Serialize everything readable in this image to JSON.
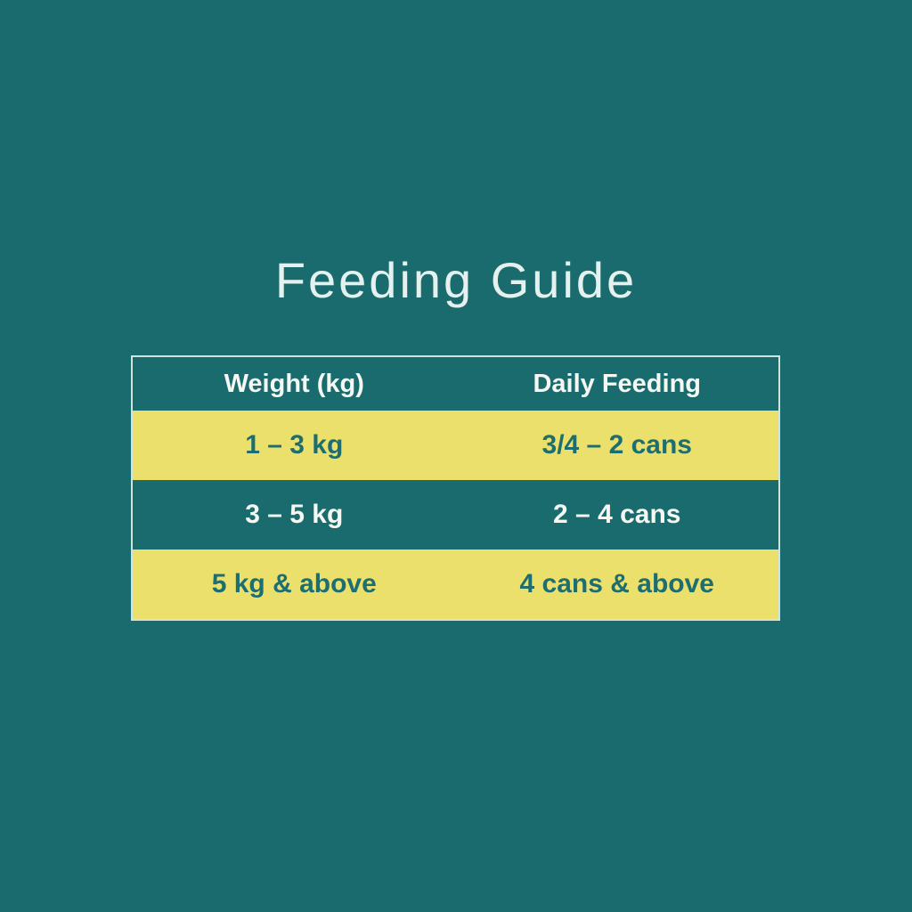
{
  "page": {
    "title": "Feeding Guide"
  },
  "colors": {
    "background_teal": "#1A6B6E",
    "row_yellow": "#ECE06D",
    "text_teal": "#1D6E71",
    "text_light": "#F4F7F2",
    "table_border": "#CFE3E1"
  },
  "table": {
    "columns": [
      {
        "label": "Weight (kg)"
      },
      {
        "label": "Daily Feeding"
      }
    ],
    "rows": [
      {
        "weight": "1 – 3 kg",
        "feeding": "3/4 – 2 cans"
      },
      {
        "weight": "3 – 5 kg",
        "feeding": "2 – 4 cans"
      },
      {
        "weight": "5 kg & above",
        "feeding": "4 cans & above"
      }
    ]
  },
  "chart_data": {
    "type": "table",
    "title": "Feeding Guide",
    "columns": [
      "Weight (kg)",
      "Daily Feeding"
    ],
    "rows": [
      [
        "1 – 3 kg",
        "3/4 – 2 cans"
      ],
      [
        "3 – 5 kg",
        "2 – 4 cans"
      ],
      [
        "5 kg & above",
        "4 cans & above"
      ]
    ]
  }
}
